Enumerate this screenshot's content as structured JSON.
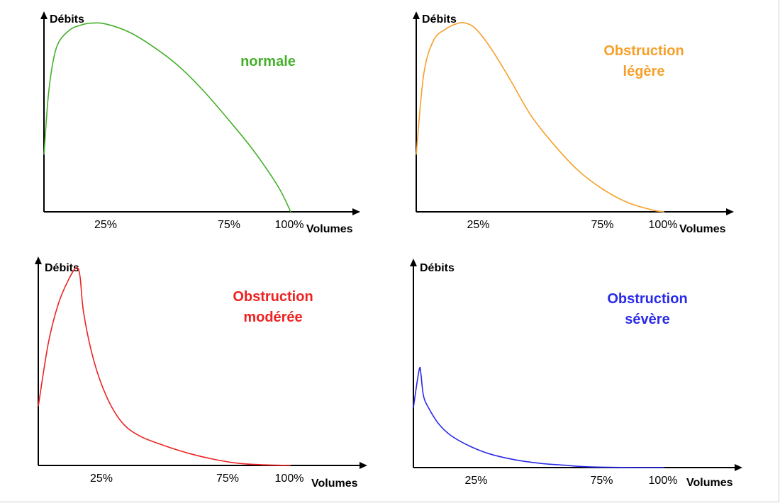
{
  "chart_data": [
    {
      "type": "line",
      "title": "normale",
      "color": "#44b02a",
      "ylabel": "Débits",
      "xlabel": "Volumes",
      "tick_labels": [
        "25%",
        "75%",
        "100%"
      ],
      "ticks": [
        25,
        75,
        100
      ],
      "xlim": [
        0,
        100
      ],
      "ylim": [
        0,
        100
      ],
      "grid": false,
      "x": [
        0,
        2,
        5,
        10,
        15,
        19,
        25,
        35,
        45,
        55,
        65,
        75,
        85,
        95,
        100
      ],
      "y": [
        30,
        64,
        86,
        95,
        98,
        99,
        98.6,
        94,
        86,
        76,
        63,
        48,
        32,
        13,
        0
      ]
    },
    {
      "type": "line",
      "title": "Obstruction légère",
      "color": "#f5a02a",
      "ylabel": "Débits",
      "xlabel": "Volumes",
      "tick_labels": [
        "25%",
        "75%",
        "100%"
      ],
      "ticks": [
        25,
        75,
        100
      ],
      "xlim": [
        0,
        100
      ],
      "ylim": [
        0,
        100
      ],
      "grid": false,
      "x": [
        0,
        3,
        7,
        12,
        17,
        20,
        24,
        30,
        38,
        46,
        55,
        65,
        75,
        85,
        95,
        100
      ],
      "y": [
        30,
        72,
        90,
        96,
        99,
        99,
        96,
        86,
        69,
        51,
        36,
        22,
        12,
        5,
        1,
        0
      ]
    },
    {
      "type": "line",
      "title": "Obstruction modérée",
      "color": "#ee2222",
      "ylabel": "Débits",
      "xlabel": "Volumes",
      "tick_labels": [
        "25%",
        "75%",
        "100%"
      ],
      "ticks": [
        25,
        75,
        100
      ],
      "xlim": [
        0,
        100
      ],
      "ylim": [
        0,
        100
      ],
      "grid": false,
      "x": [
        0,
        4,
        8,
        12,
        15,
        16.5,
        18,
        22,
        27,
        33,
        40,
        50,
        60,
        70,
        80,
        90,
        100
      ],
      "y": [
        30,
        62,
        82,
        94,
        100,
        96,
        77,
        53,
        35,
        22,
        15,
        10,
        6,
        3,
        1,
        0.3,
        0
      ]
    },
    {
      "type": "line",
      "title": "Obstruction sévère",
      "color": "#2a2ae8",
      "ylabel": "Débits",
      "xlabel": "Volumes",
      "tick_labels": [
        "25%",
        "75%",
        "100%"
      ],
      "ticks": [
        25,
        75,
        100
      ],
      "xlim": [
        0,
        100
      ],
      "ylim": [
        0,
        100
      ],
      "grid": false,
      "x": [
        0,
        1.5,
        2.5,
        3,
        4,
        6,
        10,
        15,
        22,
        30,
        40,
        50,
        60,
        66,
        75,
        90,
        100
      ],
      "y": [
        30,
        43,
        50,
        47,
        36,
        30,
        22,
        16,
        11,
        7,
        4,
        2.2,
        1.2,
        0.6,
        0.2,
        0,
        0
      ]
    }
  ]
}
